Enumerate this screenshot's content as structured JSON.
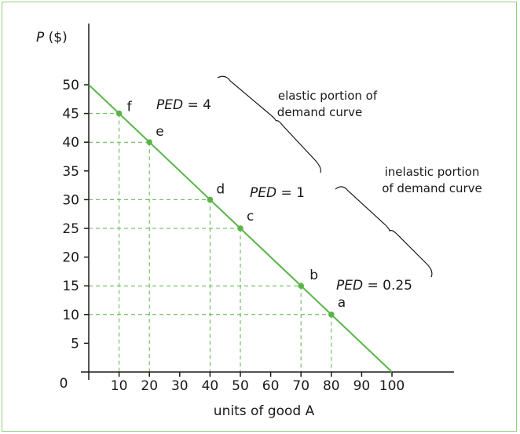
{
  "chart_data": {
    "type": "line",
    "ylabel_italic": "P",
    "ylabel_unit": " ($)",
    "xlabel": "units of good A",
    "xlim": [
      0,
      100
    ],
    "ylim": [
      0,
      50
    ],
    "x_ticks": [
      10,
      20,
      30,
      40,
      50,
      60,
      70,
      80,
      90,
      100
    ],
    "y_ticks": [
      5,
      10,
      15,
      20,
      25,
      30,
      35,
      40,
      45,
      50
    ],
    "origin_label": "0",
    "line_color": "#5ab548",
    "guide_color": "#5ab548",
    "curve": [
      [
        0,
        50
      ],
      [
        100,
        0
      ]
    ],
    "points": [
      {
        "label": "f",
        "x": 10,
        "y": 45
      },
      {
        "label": "e",
        "x": 20,
        "y": 40
      },
      {
        "label": "d",
        "x": 40,
        "y": 30
      },
      {
        "label": "c",
        "x": 50,
        "y": 25
      },
      {
        "label": "b",
        "x": 70,
        "y": 15
      },
      {
        "label": "a",
        "x": 80,
        "y": 10
      }
    ],
    "ped_labels": [
      {
        "name": "PED",
        "value": " = 4"
      },
      {
        "name": "PED",
        "value": " = 1"
      },
      {
        "name": "PED",
        "value": " = 0.25"
      }
    ],
    "annotations": {
      "elastic": [
        "elastic portion of",
        "demand curve"
      ],
      "inelastic": [
        "inelastic portion",
        "of demand curve"
      ]
    }
  }
}
